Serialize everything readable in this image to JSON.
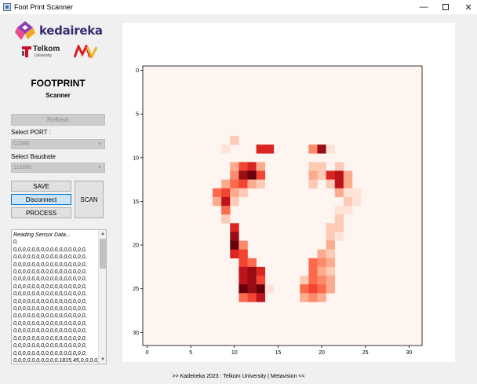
{
  "window": {
    "title": "Foot Print Scanner",
    "minimize_glyph": "—",
    "close_glyph": "✕"
  },
  "logos": {
    "kedaireka": "kedaireka",
    "telkom": "Telkom",
    "telkom_sub": "University"
  },
  "header": {
    "title": "FOOTPRINT",
    "subtitle": "Scanner"
  },
  "controls": {
    "refresh_label": "Refresh",
    "port_label": "Select PORT :",
    "port_value": "COM9",
    "baud_label": "Select Baudrate",
    "baud_value": "115200",
    "save_label": "SAVE",
    "disconnect_label": "Disconnect",
    "process_label": "PROCESS",
    "scan_label": "SCAN"
  },
  "log": {
    "lines": [
      "Reading Sensor Data...",
      "0,",
      "0,0,0,0,0,0,0,0,0,0,0,0,0,0,0,0,",
      "0,0,0,0,0,0,0,0,0,0,0,0,0,0,0,0,",
      "0,0,0,0,0,0,0,0,0,0,0,0,0,0,0,0,",
      "0,0,0,0,0,0,0,0,0,0,0,0,0,0,0,0,",
      "0,0,0,0,0,0,0,0,0,0,0,0,0,0,0,0,",
      "0,0,0,0,0,0,0,0,0,0,0,0,0,0,0,0,",
      "0,0,0,0,0,0,0,0,0,0,0,0,0,0,0,0,",
      "0,0,0,0,0,0,0,0,0,0,0,0,0,0,0,0,",
      "0,0,0,0,0,0,0,0,0,0,0,0,0,0,0,0,",
      "0,0,0,0,0,0,0,0,0,0,0,0,0,0,0,0,",
      "0,0,0,0,0,0,0,0,0,0,0,0,0,0,0,0,",
      "0,0,0,0,0,0,0,0,0,0,0,0,0,0,0,0,",
      "0,0,0,0,0,0,0,0,0,0,0,0,0,0,0,0,",
      "0,0,0,0,0,0,0,0,0,0,0,0,0,0,0,0,",
      "0,0,0,0,0,0,0,0,0,0,0,0,0,0,0,0,",
      "0,0,0,0,0,0,0,0,0,0,1815,45,0,0,0,0,"
    ]
  },
  "chart_data": {
    "type": "heatmap",
    "rows": 32,
    "cols": 32,
    "xlim": [
      -0.5,
      31.5
    ],
    "ylim": [
      31.5,
      -0.5
    ],
    "xticks": [
      0,
      5,
      10,
      15,
      20,
      25,
      30
    ],
    "yticks": [
      0,
      5,
      10,
      15,
      20,
      25,
      30
    ],
    "colormap": "Reds",
    "vmax": 10,
    "cells": [
      {
        "x": 10,
        "y": 8,
        "v": 2
      },
      {
        "x": 9,
        "y": 9,
        "v": 1
      },
      {
        "x": 13,
        "y": 9,
        "v": 7
      },
      {
        "x": 14,
        "y": 9,
        "v": 7
      },
      {
        "x": 19,
        "y": 9,
        "v": 4
      },
      {
        "x": 20,
        "y": 9,
        "v": 9
      },
      {
        "x": 21,
        "y": 9,
        "v": 1
      },
      {
        "x": 10,
        "y": 11,
        "v": 3
      },
      {
        "x": 11,
        "y": 11,
        "v": 6
      },
      {
        "x": 12,
        "y": 11,
        "v": 7
      },
      {
        "x": 13,
        "y": 11,
        "v": 3
      },
      {
        "x": 19,
        "y": 11,
        "v": 2
      },
      {
        "x": 20,
        "y": 11,
        "v": 2
      },
      {
        "x": 22,
        "y": 11,
        "v": 2
      },
      {
        "x": 10,
        "y": 12,
        "v": 4
      },
      {
        "x": 11,
        "y": 12,
        "v": 9
      },
      {
        "x": 12,
        "y": 12,
        "v": 10
      },
      {
        "x": 13,
        "y": 12,
        "v": 6
      },
      {
        "x": 19,
        "y": 12,
        "v": 3
      },
      {
        "x": 20,
        "y": 12,
        "v": 2
      },
      {
        "x": 21,
        "y": 12,
        "v": 7
      },
      {
        "x": 22,
        "y": 12,
        "v": 8
      },
      {
        "x": 23,
        "y": 12,
        "v": 3
      },
      {
        "x": 9,
        "y": 13,
        "v": 3
      },
      {
        "x": 10,
        "y": 13,
        "v": 5
      },
      {
        "x": 11,
        "y": 13,
        "v": 6
      },
      {
        "x": 12,
        "y": 13,
        "v": 3
      },
      {
        "x": 13,
        "y": 13,
        "v": 2
      },
      {
        "x": 19,
        "y": 13,
        "v": 2
      },
      {
        "x": 21,
        "y": 13,
        "v": 2
      },
      {
        "x": 22,
        "y": 13,
        "v": 8
      },
      {
        "x": 23,
        "y": 13,
        "v": 3
      },
      {
        "x": 8,
        "y": 14,
        "v": 5
      },
      {
        "x": 9,
        "y": 14,
        "v": 6
      },
      {
        "x": 10,
        "y": 14,
        "v": 3
      },
      {
        "x": 11,
        "y": 14,
        "v": 2
      },
      {
        "x": 22,
        "y": 14,
        "v": 3
      },
      {
        "x": 23,
        "y": 14,
        "v": 1
      },
      {
        "x": 24,
        "y": 14,
        "v": 1
      },
      {
        "x": 8,
        "y": 15,
        "v": 3
      },
      {
        "x": 9,
        "y": 15,
        "v": 8
      },
      {
        "x": 10,
        "y": 15,
        "v": 2
      },
      {
        "x": 23,
        "y": 15,
        "v": 2
      },
      {
        "x": 24,
        "y": 15,
        "v": 1
      },
      {
        "x": 9,
        "y": 16,
        "v": 5
      },
      {
        "x": 22,
        "y": 16,
        "v": 1
      },
      {
        "x": 23,
        "y": 16,
        "v": 1
      },
      {
        "x": 9,
        "y": 17,
        "v": 2
      },
      {
        "x": 22,
        "y": 17,
        "v": 2
      },
      {
        "x": 10,
        "y": 18,
        "v": 7
      },
      {
        "x": 21,
        "y": 18,
        "v": 2
      },
      {
        "x": 22,
        "y": 18,
        "v": 2
      },
      {
        "x": 10,
        "y": 19,
        "v": 9
      },
      {
        "x": 21,
        "y": 19,
        "v": 2
      },
      {
        "x": 22,
        "y": 19,
        "v": 1
      },
      {
        "x": 10,
        "y": 20,
        "v": 10
      },
      {
        "x": 11,
        "y": 20,
        "v": 4
      },
      {
        "x": 21,
        "y": 20,
        "v": 3
      },
      {
        "x": 10,
        "y": 21,
        "v": 7
      },
      {
        "x": 11,
        "y": 21,
        "v": 6
      },
      {
        "x": 20,
        "y": 21,
        "v": 3
      },
      {
        "x": 21,
        "y": 21,
        "v": 2
      },
      {
        "x": 11,
        "y": 22,
        "v": 6
      },
      {
        "x": 12,
        "y": 22,
        "v": 5
      },
      {
        "x": 19,
        "y": 22,
        "v": 5
      },
      {
        "x": 20,
        "y": 22,
        "v": 4
      },
      {
        "x": 21,
        "y": 22,
        "v": 3
      },
      {
        "x": 11,
        "y": 23,
        "v": 8
      },
      {
        "x": 12,
        "y": 23,
        "v": 9
      },
      {
        "x": 13,
        "y": 23,
        "v": 7
      },
      {
        "x": 19,
        "y": 23,
        "v": 5
      },
      {
        "x": 20,
        "y": 23,
        "v": 3
      },
      {
        "x": 21,
        "y": 23,
        "v": 2
      },
      {
        "x": 11,
        "y": 24,
        "v": 8
      },
      {
        "x": 12,
        "y": 24,
        "v": 9
      },
      {
        "x": 13,
        "y": 24,
        "v": 6
      },
      {
        "x": 18,
        "y": 24,
        "v": 2
      },
      {
        "x": 19,
        "y": 24,
        "v": 5
      },
      {
        "x": 20,
        "y": 24,
        "v": 4
      },
      {
        "x": 21,
        "y": 24,
        "v": 3
      },
      {
        "x": 11,
        "y": 25,
        "v": 10
      },
      {
        "x": 12,
        "y": 25,
        "v": 9
      },
      {
        "x": 13,
        "y": 25,
        "v": 10
      },
      {
        "x": 14,
        "y": 25,
        "v": 1
      },
      {
        "x": 18,
        "y": 25,
        "v": 5
      },
      {
        "x": 19,
        "y": 25,
        "v": 6
      },
      {
        "x": 20,
        "y": 25,
        "v": 5
      },
      {
        "x": 21,
        "y": 25,
        "v": 3
      },
      {
        "x": 11,
        "y": 26,
        "v": 5
      },
      {
        "x": 12,
        "y": 26,
        "v": 6
      },
      {
        "x": 13,
        "y": 26,
        "v": 8
      },
      {
        "x": 18,
        "y": 26,
        "v": 3
      },
      {
        "x": 19,
        "y": 26,
        "v": 4
      },
      {
        "x": 20,
        "y": 26,
        "v": 3
      }
    ]
  },
  "footer": {
    "text": ">> Kadeireka 2023 : Telkom University | Metavision <<"
  }
}
